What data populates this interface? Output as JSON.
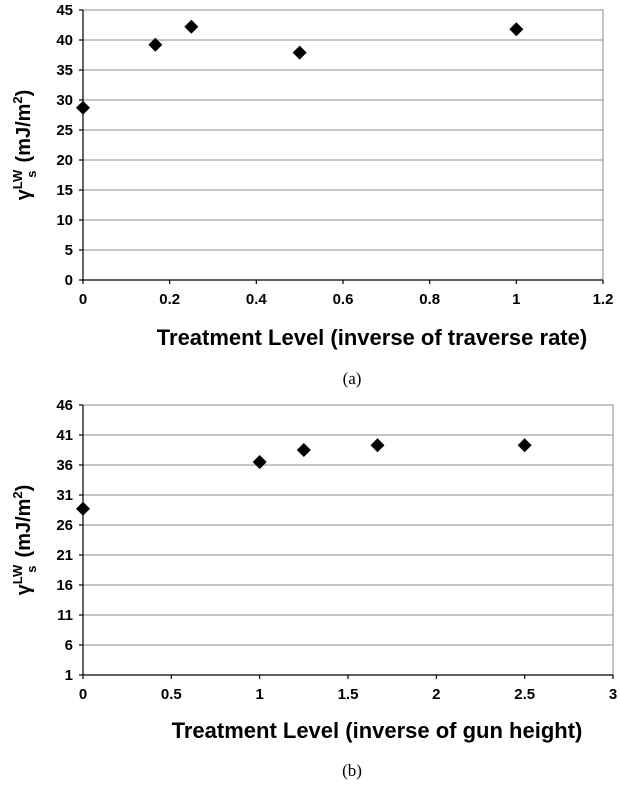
{
  "chart_data": [
    {
      "type": "scatter",
      "panel_label": "(a)",
      "xlabel": "Treatment Level (inverse of traverse rate)",
      "ylabel": {
        "base": "γ",
        "sup": "LW",
        "sub": "s",
        "unit": "(mJ/m",
        "unit_sup": "2",
        "unit_end": ")"
      },
      "xlim": [
        0,
        1.2
      ],
      "ylim": [
        0,
        45
      ],
      "x_ticks": [
        0,
        0.2,
        0.4,
        0.6,
        0.8,
        1,
        1.2
      ],
      "x_tick_labels": [
        "0",
        "0.2",
        "0.4",
        "0.6",
        "0.8",
        "1",
        "1.2"
      ],
      "y_ticks": [
        0,
        5,
        10,
        15,
        20,
        25,
        30,
        35,
        40,
        45
      ],
      "y_tick_labels": [
        "0",
        "5",
        "10",
        "15",
        "20",
        "25",
        "30",
        "35",
        "40",
        "45"
      ],
      "grid": "horizontal",
      "marker": "diamond",
      "marker_color": "#000000",
      "points": [
        {
          "x": 0,
          "y": 28.7
        },
        {
          "x": 0.167,
          "y": 39.2
        },
        {
          "x": 0.25,
          "y": 42.2
        },
        {
          "x": 0.5,
          "y": 37.9
        },
        {
          "x": 1,
          "y": 41.8
        }
      ]
    },
    {
      "type": "scatter",
      "panel_label": "(b)",
      "xlabel": "Treatment Level (inverse of gun height)",
      "ylabel": {
        "base": "γ",
        "sup": "LW",
        "sub": "s",
        "unit": "(mJ/m",
        "unit_sup": "2",
        "unit_end": ")"
      },
      "xlim": [
        0,
        3
      ],
      "ylim": [
        1,
        46
      ],
      "x_ticks": [
        0,
        0.5,
        1,
        1.5,
        2,
        2.5,
        3
      ],
      "x_tick_labels": [
        "0",
        "0.5",
        "1",
        "1.5",
        "2",
        "2.5",
        "3"
      ],
      "y_ticks": [
        1,
        6,
        11,
        16,
        21,
        26,
        31,
        36,
        41,
        46
      ],
      "y_tick_labels": [
        "1",
        "6",
        "11",
        "16",
        "21",
        "26",
        "31",
        "36",
        "41",
        "46"
      ],
      "grid": "horizontal",
      "marker": "diamond",
      "marker_color": "#000000",
      "points": [
        {
          "x": 0,
          "y": 28.7
        },
        {
          "x": 1,
          "y": 36.5
        },
        {
          "x": 1.25,
          "y": 38.5
        },
        {
          "x": 1.667,
          "y": 39.3
        },
        {
          "x": 2.5,
          "y": 39.3
        }
      ]
    }
  ]
}
